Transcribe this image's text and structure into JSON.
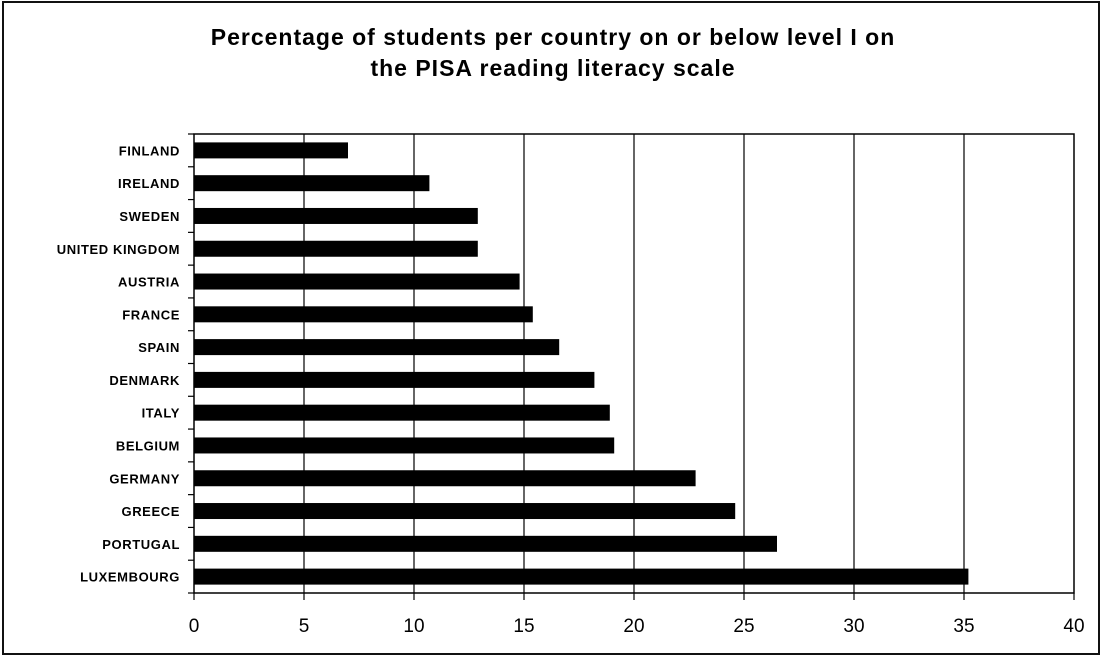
{
  "chart_data": {
    "type": "bar",
    "orientation": "horizontal",
    "title_line1": "Percentage of students per country on or below level I on",
    "title_line2": "the PISA reading literacy scale",
    "categories": [
      "FINLAND",
      "IRELAND",
      "SWEDEN",
      "UNITED KINGDOM",
      "AUSTRIA",
      "FRANCE",
      "SPAIN",
      "DENMARK",
      "ITALY",
      "BELGIUM",
      "GERMANY",
      "GREECE",
      "PORTUGAL",
      "LUXEMBOURG"
    ],
    "values": [
      7.0,
      10.7,
      12.9,
      12.9,
      14.8,
      15.4,
      16.6,
      18.2,
      18.9,
      19.1,
      22.8,
      24.6,
      26.5,
      35.2
    ],
    "xlim": [
      0,
      40
    ],
    "xticks": [
      "0",
      "5",
      "10",
      "15",
      "20",
      "25",
      "30",
      "35",
      "40"
    ],
    "grid": true,
    "bar_color": "#000000"
  }
}
